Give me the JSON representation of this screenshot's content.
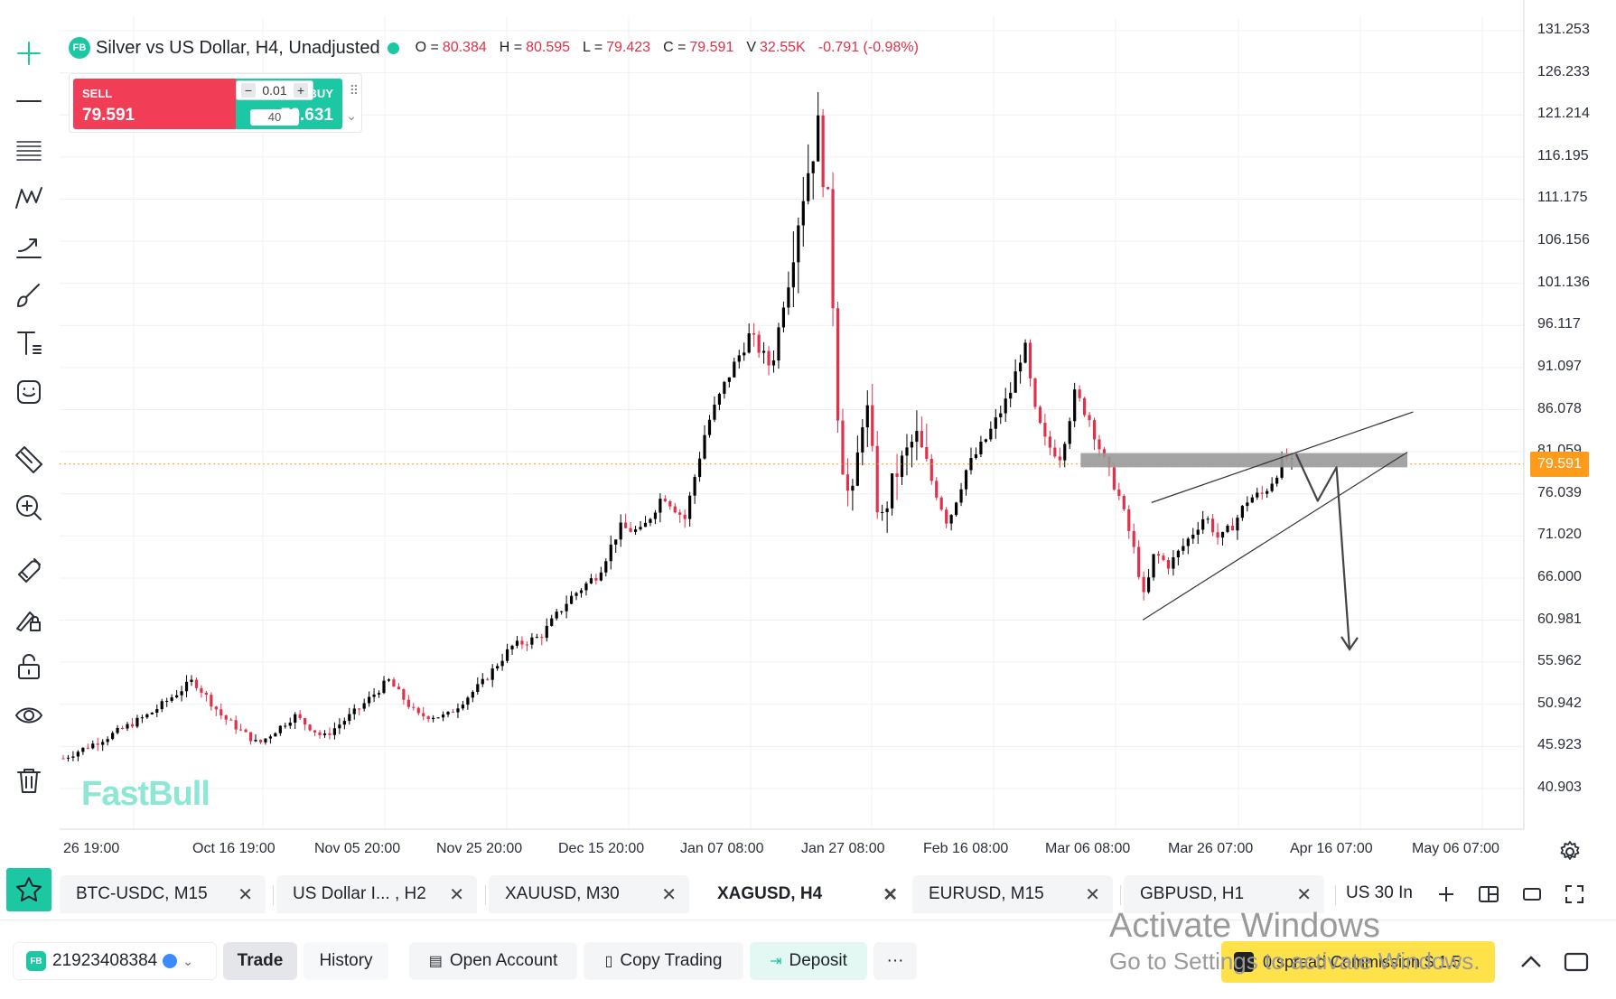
{
  "legend": {
    "logo": "FB",
    "symbol": "Silver vs US Dollar, H4, Unadjusted",
    "o_label": "O =",
    "o_value": "80.384",
    "h_label": "H =",
    "h_value": "80.595",
    "l_label": "L =",
    "l_value": "79.423",
    "c_label": "C =",
    "c_value": "79.591",
    "v_label": "V",
    "v_value": "32.55K",
    "change": "-0.791 (-0.98%)"
  },
  "trade_widget": {
    "sell_label": "SELL",
    "sell_price": "79.591",
    "buy_label": "BUY",
    "buy_price": "79.631",
    "quantity": "0.01",
    "spread": "40"
  },
  "watermark": "FastBull",
  "price_axis": {
    "labels": [
      "131.253",
      "126.233",
      "121.214",
      "116.195",
      "111.175",
      "106.156",
      "101.136",
      "96.117",
      "91.097",
      "86.078",
      "81.059",
      "76.039",
      "71.020",
      "66.000",
      "60.981",
      "55.962",
      "50.942",
      "45.923",
      "40.903"
    ],
    "current_price": "79.591"
  },
  "time_axis": {
    "labels": [
      "26 19:00",
      "Oct 16 19:00",
      "Nov 05 20:00",
      "Nov 25 20:00",
      "Dec 15 20:00",
      "Jan 07 08:00",
      "Jan 27 08:00",
      "Feb 16 08:00",
      "Mar 06 08:00",
      "Mar 26 07:00",
      "Apr 16 07:00",
      "May 06 07:00"
    ]
  },
  "chart_data": {
    "type": "candlestick",
    "title": "Silver vs US Dollar, H4, Unadjusted",
    "ylim": [
      40.903,
      131.253
    ],
    "current_price": 79.591,
    "colors": {
      "up": "#000000",
      "down": "#e0314b",
      "grid": "#eef0f3",
      "drawing": "#333333",
      "zone": "#9a9a9a",
      "current_line": "#ff9b1a"
    },
    "path": [
      [
        0,
        44.5
      ],
      [
        0.03,
        47.0
      ],
      [
        0.06,
        49.8
      ],
      [
        0.09,
        53.8
      ],
      [
        0.11,
        49.5
      ],
      [
        0.135,
        46.2
      ],
      [
        0.16,
        49.6
      ],
      [
        0.18,
        47.0
      ],
      [
        0.205,
        50.5
      ],
      [
        0.225,
        53.8
      ],
      [
        0.245,
        49.6
      ],
      [
        0.265,
        49.5
      ],
      [
        0.29,
        53.5
      ],
      [
        0.31,
        57.8
      ],
      [
        0.33,
        59.0
      ],
      [
        0.35,
        63.5
      ],
      [
        0.37,
        66.5
      ],
      [
        0.385,
        72.0
      ],
      [
        0.4,
        71.5
      ],
      [
        0.415,
        76.0
      ],
      [
        0.43,
        73.0
      ],
      [
        0.445,
        84.0
      ],
      [
        0.46,
        90.0
      ],
      [
        0.475,
        95.0
      ],
      [
        0.49,
        91.0
      ],
      [
        0.5,
        100.5
      ],
      [
        0.51,
        110.5
      ],
      [
        0.522,
        119.8
      ],
      [
        0.53,
        109.0
      ],
      [
        0.537,
        82.0
      ],
      [
        0.545,
        74.0
      ],
      [
        0.555,
        88.0
      ],
      [
        0.565,
        72.0
      ],
      [
        0.575,
        78.0
      ],
      [
        0.59,
        83.0
      ],
      [
        0.6,
        78.0
      ],
      [
        0.612,
        72.5
      ],
      [
        0.625,
        79.0
      ],
      [
        0.64,
        83.0
      ],
      [
        0.655,
        88.0
      ],
      [
        0.665,
        94.0
      ],
      [
        0.672,
        86.0
      ],
      [
        0.68,
        82.0
      ],
      [
        0.69,
        80.5
      ],
      [
        0.7,
        88.0
      ],
      [
        0.71,
        85.0
      ],
      [
        0.72,
        80.0
      ],
      [
        0.73,
        76.0
      ],
      [
        0.74,
        70.0
      ],
      [
        0.748,
        63.5
      ],
      [
        0.755,
        69.0
      ],
      [
        0.765,
        67.5
      ],
      [
        0.78,
        71.0
      ],
      [
        0.79,
        73.5
      ],
      [
        0.8,
        70.5
      ],
      [
        0.81,
        72.5
      ],
      [
        0.82,
        75.5
      ],
      [
        0.83,
        76.0
      ],
      [
        0.838,
        78.0
      ],
      [
        0.845,
        80.5
      ],
      [
        0.85,
        79.6
      ]
    ],
    "drawings": {
      "resistance_zone": {
        "y_top": 80.9,
        "y_bottom": 79.2
      },
      "wedge_upper": [
        [
          0.753,
          75.0
        ],
        [
          0.934,
          85.8
        ]
      ],
      "wedge_lower": [
        [
          0.747,
          61.0
        ],
        [
          0.93,
          81.0
        ]
      ],
      "projection": [
        [
          0.853,
          80.8
        ],
        [
          0.868,
          75.2
        ],
        [
          0.881,
          79.2
        ],
        [
          0.89,
          57.5
        ]
      ]
    }
  },
  "tabs": [
    {
      "label": "BTC-USDC, M15",
      "active": false
    },
    {
      "label": "US Dollar I... , H2",
      "active": false
    },
    {
      "label": "XAUUSD, M30",
      "active": false
    },
    {
      "label": "XAGUSD, H4",
      "active": true
    },
    {
      "label": "EURUSD, M15",
      "active": false
    },
    {
      "label": "GBPUSD, H1",
      "active": false
    }
  ],
  "tab_overflow": "US 30 In",
  "bottom_bar": {
    "account_logo": "FB",
    "account_id": "21923408384",
    "trade": "Trade",
    "history": "History",
    "open_account": "Open Account",
    "copy_trading": "Copy Trading",
    "deposit": "Deposit",
    "more": "···",
    "promo": "0 spread Commission $ 1.5"
  },
  "os_watermark": {
    "line1": "Activate Windows",
    "line2": "Go to Settings to activate Windows."
  },
  "icons": [
    "plus-icon",
    "horizontal-line-icon",
    "fib-lines-icon",
    "pattern-icon",
    "trend-arrow-icon",
    "brush-icon",
    "text-icon",
    "sticker-icon",
    "ruler-icon",
    "zoom-in-icon",
    "magnet-icon",
    "lock-drawing-icon",
    "unlock-icon",
    "eye-icon",
    "trash-icon"
  ]
}
